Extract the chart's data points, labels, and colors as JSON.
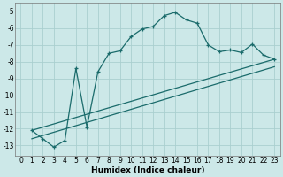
{
  "xlabel": "Humidex (Indice chaleur)",
  "bg_color": "#cce8e8",
  "grid_color": "#aacfcf",
  "line_color": "#1a6b6b",
  "xlim": [
    -0.5,
    23.5
  ],
  "ylim": [
    -13.6,
    -4.5
  ],
  "yticks": [
    -13,
    -12,
    -11,
    -10,
    -9,
    -8,
    -7,
    -6,
    -5
  ],
  "xticks": [
    0,
    1,
    2,
    3,
    4,
    5,
    6,
    7,
    8,
    9,
    10,
    11,
    12,
    13,
    14,
    15,
    16,
    17,
    18,
    19,
    20,
    21,
    22,
    23
  ],
  "curve1_x": [
    1,
    2,
    3,
    4,
    5,
    6,
    7,
    8,
    9,
    10,
    11,
    12,
    13,
    14,
    15,
    16,
    17,
    18,
    19,
    20,
    21,
    22,
    23
  ],
  "curve1_y": [
    -12.1,
    -12.6,
    -13.1,
    -12.7,
    -8.4,
    -11.9,
    -8.6,
    -7.5,
    -7.35,
    -6.5,
    -6.05,
    -5.9,
    -5.25,
    -5.05,
    -5.5,
    -5.7,
    -7.0,
    -7.4,
    -7.3,
    -7.45,
    -6.95,
    -7.6,
    -7.85
  ],
  "line2_x": [
    1,
    23
  ],
  "line2_y": [
    -12.1,
    -7.85
  ],
  "line3_x": [
    1,
    23
  ],
  "line3_y": [
    -12.6,
    -8.3
  ],
  "xlabel_fontsize": 6.5,
  "tick_fontsize": 5.5
}
